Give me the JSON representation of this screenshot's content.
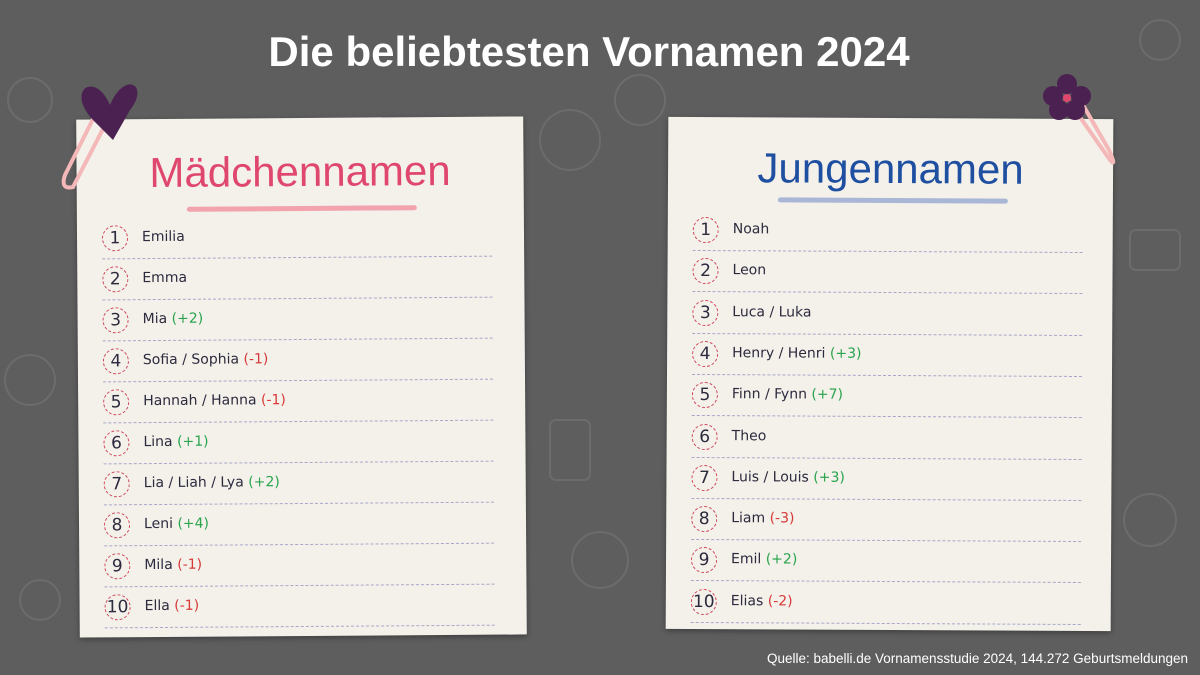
{
  "header": {
    "title": "Die beliebtesten Vornamen 2024"
  },
  "girls": {
    "heading": "Mädchennamen",
    "entries": [
      {
        "rank": 1,
        "name": "Emilia"
      },
      {
        "rank": 2,
        "name": "Emma"
      },
      {
        "rank": 3,
        "name": "Mia",
        "change": "(+2)"
      },
      {
        "rank": 4,
        "name": "Sofia / Sophia",
        "change": "(-1)"
      },
      {
        "rank": 5,
        "name": "Hannah / Hanna",
        "change": "(-1)"
      },
      {
        "rank": 6,
        "name": "Lina",
        "change": "(+1)"
      },
      {
        "rank": 7,
        "name": "Lia / Liah / Lya",
        "change": "(+2)"
      },
      {
        "rank": 8,
        "name": "Leni",
        "change": "(+4)"
      },
      {
        "rank": 9,
        "name": "Mila",
        "change": "(-1)"
      },
      {
        "rank": 10,
        "name": "Ella",
        "change": "(-1)"
      }
    ]
  },
  "boys": {
    "heading": "Jungennamen",
    "entries": [
      {
        "rank": 1,
        "name": "Noah"
      },
      {
        "rank": 2,
        "name": "Leon"
      },
      {
        "rank": 3,
        "name": "Luca / Luka"
      },
      {
        "rank": 4,
        "name": "Henry / Henri",
        "change": "(+3)"
      },
      {
        "rank": 5,
        "name": "Finn / Fynn",
        "change": "(+7)"
      },
      {
        "rank": 6,
        "name": "Theo"
      },
      {
        "rank": 7,
        "name": "Luis / Louis",
        "change": "(+3)"
      },
      {
        "rank": 8,
        "name": "Liam",
        "change": "(-3)"
      },
      {
        "rank": 9,
        "name": "Emil",
        "change": "(+2)"
      },
      {
        "rank": 10,
        "name": "Elias",
        "change": "(-2)"
      }
    ]
  },
  "footer": {
    "source": "Quelle: babelli.de Vornamensstudie 2024, 144.272 Geburtsmeldungen"
  }
}
